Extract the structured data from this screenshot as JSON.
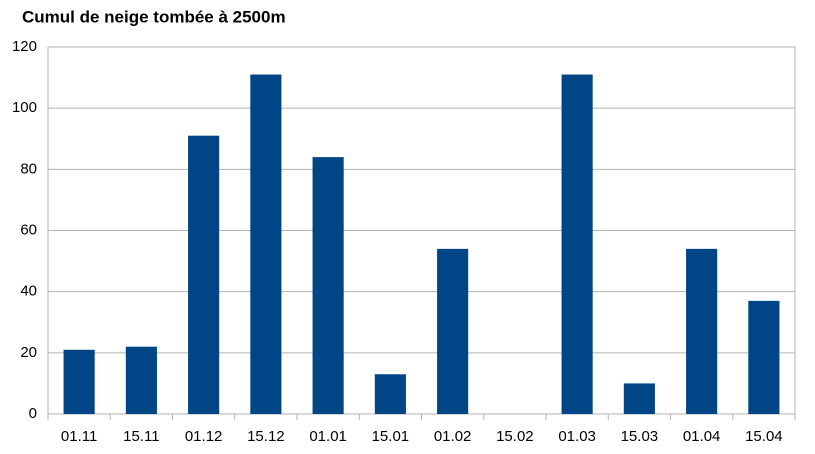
{
  "chart_data": {
    "type": "bar",
    "title": "Cumul de neige tombée à 2500m",
    "categories": [
      "01.11",
      "15.11",
      "01.12",
      "15.12",
      "01.01",
      "15.01",
      "01.02",
      "15.02",
      "01.03",
      "15.03",
      "01.04",
      "15.04"
    ],
    "values": [
      21,
      22,
      91,
      111,
      84,
      13,
      54,
      0,
      111,
      10,
      54,
      37
    ],
    "color": "#004586",
    "ylim": [
      0,
      120
    ],
    "yticks": [
      0,
      20,
      40,
      60,
      80,
      100,
      120
    ],
    "grid": true
  }
}
